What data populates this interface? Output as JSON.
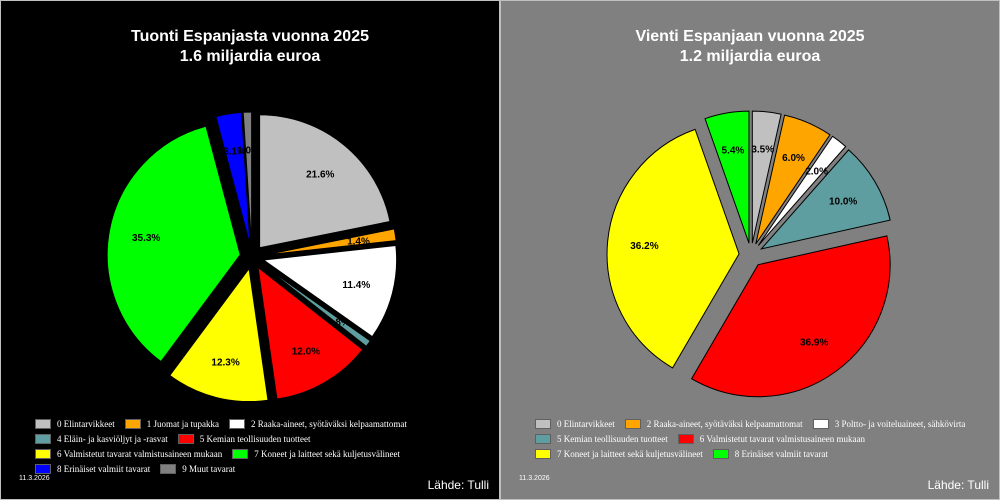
{
  "chart_data": [
    {
      "type": "pie",
      "title": "Tuonti Espanjasta vuonna 2025",
      "subtitle": "1.6 miljardia euroa",
      "slices": [
        {
          "label": "0 Elintarvikkeet",
          "value": 21.6,
          "display": "21.6%",
          "color": "#c0c0c0"
        },
        {
          "label": "1 Juomat ja tupakka",
          "value": 1.4,
          "display": "1.4%",
          "color": "#ffa500"
        },
        {
          "label": "2 Raaka-aineet, syötäväksi kelpaamattomat",
          "value": 11.4,
          "display": "11.4%",
          "color": "#ffffff"
        },
        {
          "label": "4 Eläin- ja kasviöljyt ja -rasvat",
          "value": 0.8,
          "display": "0.8%",
          "color": "#5f9ea0"
        },
        {
          "label": "5 Kemian teollisuuden tuotteet",
          "value": 12.0,
          "display": "12.0%",
          "color": "#ff0000"
        },
        {
          "label": "6 Valmistetut tavarat valmistusaineen mukaan",
          "value": 12.3,
          "display": "12.3%",
          "color": "#ffff00"
        },
        {
          "label": "7 Koneet ja laitteet sekä kuljetusvälineet",
          "value": 35.3,
          "display": "35.3%",
          "color": "#00ff00"
        },
        {
          "label": "8 Erinäiset valmiit tavarat",
          "value": 3.1,
          "display": "3.1%",
          "color": "#0000ff"
        },
        {
          "label": "9 Muut tavarat",
          "value": 1.0,
          "display": "1.0%",
          "color": "#808080"
        }
      ],
      "legend_rows": [
        [
          0,
          1,
          2
        ],
        [
          3,
          4
        ],
        [
          5,
          6
        ],
        [
          7,
          8
        ]
      ],
      "date": "11.3.2026",
      "source": "Lähde: Tulli",
      "background": "#000000"
    },
    {
      "type": "pie",
      "title": "Vienti Espanjaan vuonna 2025",
      "subtitle": "1.2 miljardia euroa",
      "slices": [
        {
          "label": "0 Elintarvikkeet",
          "value": 3.5,
          "display": "3.5%",
          "color": "#c0c0c0"
        },
        {
          "label": "2 Raaka-aineet, syötäväksi kelpaamattomat",
          "value": 6.0,
          "display": "6.0%",
          "color": "#ffa500"
        },
        {
          "label": "3 Poltto- ja voiteluaineet, sähkövirta",
          "value": 2.0,
          "display": "2.0%",
          "color": "#ffffff"
        },
        {
          "label": "5 Kemian teollisuuden tuotteet",
          "value": 10.0,
          "display": "10.0%",
          "color": "#5f9ea0"
        },
        {
          "label": "6 Valmistetut tavarat valmistusaineen mukaan",
          "value": 36.9,
          "display": "36.9%",
          "color": "#ff0000"
        },
        {
          "label": "7 Koneet ja laitteet sekä kuljetusvälineet",
          "value": 36.2,
          "display": "36.2%",
          "color": "#ffff00"
        },
        {
          "label": "8 Erinäiset valmiit tavarat",
          "value": 5.4,
          "display": "5.4%",
          "color": "#00ff00"
        }
      ],
      "legend_rows": [
        [
          0,
          1,
          2
        ],
        [
          3,
          4
        ],
        [
          5,
          6
        ]
      ],
      "date": "11.3.2026",
      "source": "Lähde: Tulli",
      "background": "#808080"
    }
  ]
}
